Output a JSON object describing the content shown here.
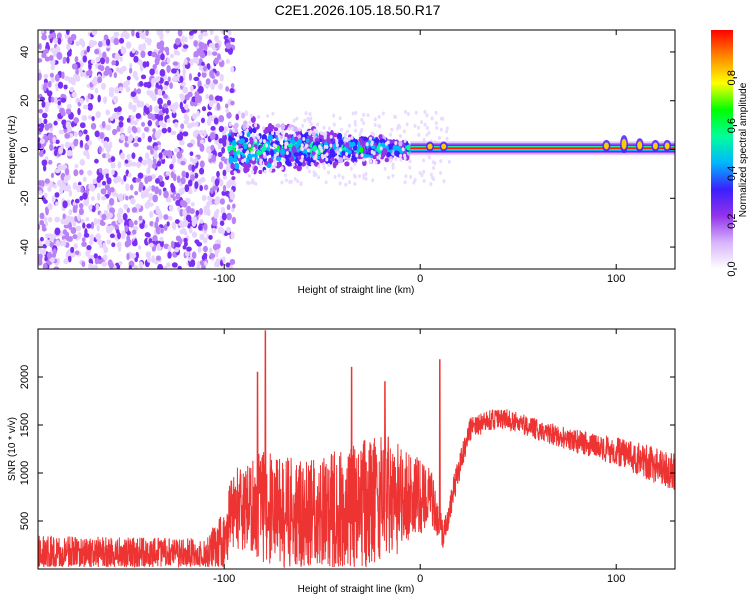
{
  "title": "C2E1.2026.105.18.50.R17",
  "chart_data": [
    {
      "type": "heatmap",
      "xlabel": "Height of straight line (km)",
      "ylabel": "Frequency (Hz)",
      "xlim": [
        -195,
        130
      ],
      "ylim": [
        -49,
        49
      ],
      "xticks": [
        -100,
        0,
        100
      ],
      "yticks": [
        -40,
        -20,
        0,
        20,
        40
      ],
      "colorbar": {
        "label": "Normalized spectral amplitude",
        "range": [
          0,
          1
        ],
        "ticks": [
          "0.0",
          "0.2",
          "0.4",
          "0.6",
          "0.8"
        ],
        "colors": [
          "#ffffff",
          "#d8b4fe",
          "#9333ea",
          "#3b1fff",
          "#00b7ff",
          "#00ff99",
          "#00ff00",
          "#ffff00",
          "#ff8800",
          "#ff0000"
        ]
      },
      "features": {
        "noise_region_x": [
          -195,
          -97
        ],
        "broad_signal_x": [
          -97,
          -5
        ],
        "narrow_carrier_x": [
          -5,
          130
        ],
        "carrier_freq": 0.5
      }
    },
    {
      "type": "line",
      "xlabel": "Height of straight line (km)",
      "ylabel": "SNR (10 * v/v)",
      "xlim": [
        -195,
        130
      ],
      "ylim": [
        0,
        2500
      ],
      "xticks": [
        -100,
        0,
        100
      ],
      "yticks": [
        500,
        1000,
        1500,
        2000
      ],
      "line_color": "#ee3333",
      "envelope": [
        {
          "x": -195,
          "mean": 150,
          "spread": 200
        },
        {
          "x": -150,
          "mean": 150,
          "spread": 180
        },
        {
          "x": -110,
          "mean": 150,
          "spread": 170
        },
        {
          "x": -100,
          "mean": 300,
          "spread": 300
        },
        {
          "x": -95,
          "mean": 650,
          "spread": 450
        },
        {
          "x": -80,
          "mean": 650,
          "spread": 600
        },
        {
          "x": -60,
          "mean": 550,
          "spread": 600
        },
        {
          "x": -40,
          "mean": 600,
          "spread": 650
        },
        {
          "x": -20,
          "mean": 750,
          "spread": 700
        },
        {
          "x": -5,
          "mean": 700,
          "spread": 500
        },
        {
          "x": 5,
          "mean": 800,
          "spread": 300
        },
        {
          "x": 12,
          "mean": 350,
          "spread": 150
        },
        {
          "x": 18,
          "mean": 900,
          "spread": 150
        },
        {
          "x": 25,
          "mean": 1450,
          "spread": 120
        },
        {
          "x": 35,
          "mean": 1550,
          "spread": 110
        },
        {
          "x": 45,
          "mean": 1560,
          "spread": 110
        },
        {
          "x": 60,
          "mean": 1450,
          "spread": 110
        },
        {
          "x": 80,
          "mean": 1330,
          "spread": 120
        },
        {
          "x": 100,
          "mean": 1230,
          "spread": 150
        },
        {
          "x": 115,
          "mean": 1120,
          "spread": 180
        },
        {
          "x": 130,
          "mean": 1000,
          "spread": 200
        }
      ],
      "peaks": [
        {
          "x": -79,
          "y": 2480
        },
        {
          "x": -83,
          "y": 2050
        },
        {
          "x": -35,
          "y": 2100
        },
        {
          "x": -18,
          "y": 1950
        },
        {
          "x": 10,
          "y": 2180
        }
      ]
    }
  ]
}
